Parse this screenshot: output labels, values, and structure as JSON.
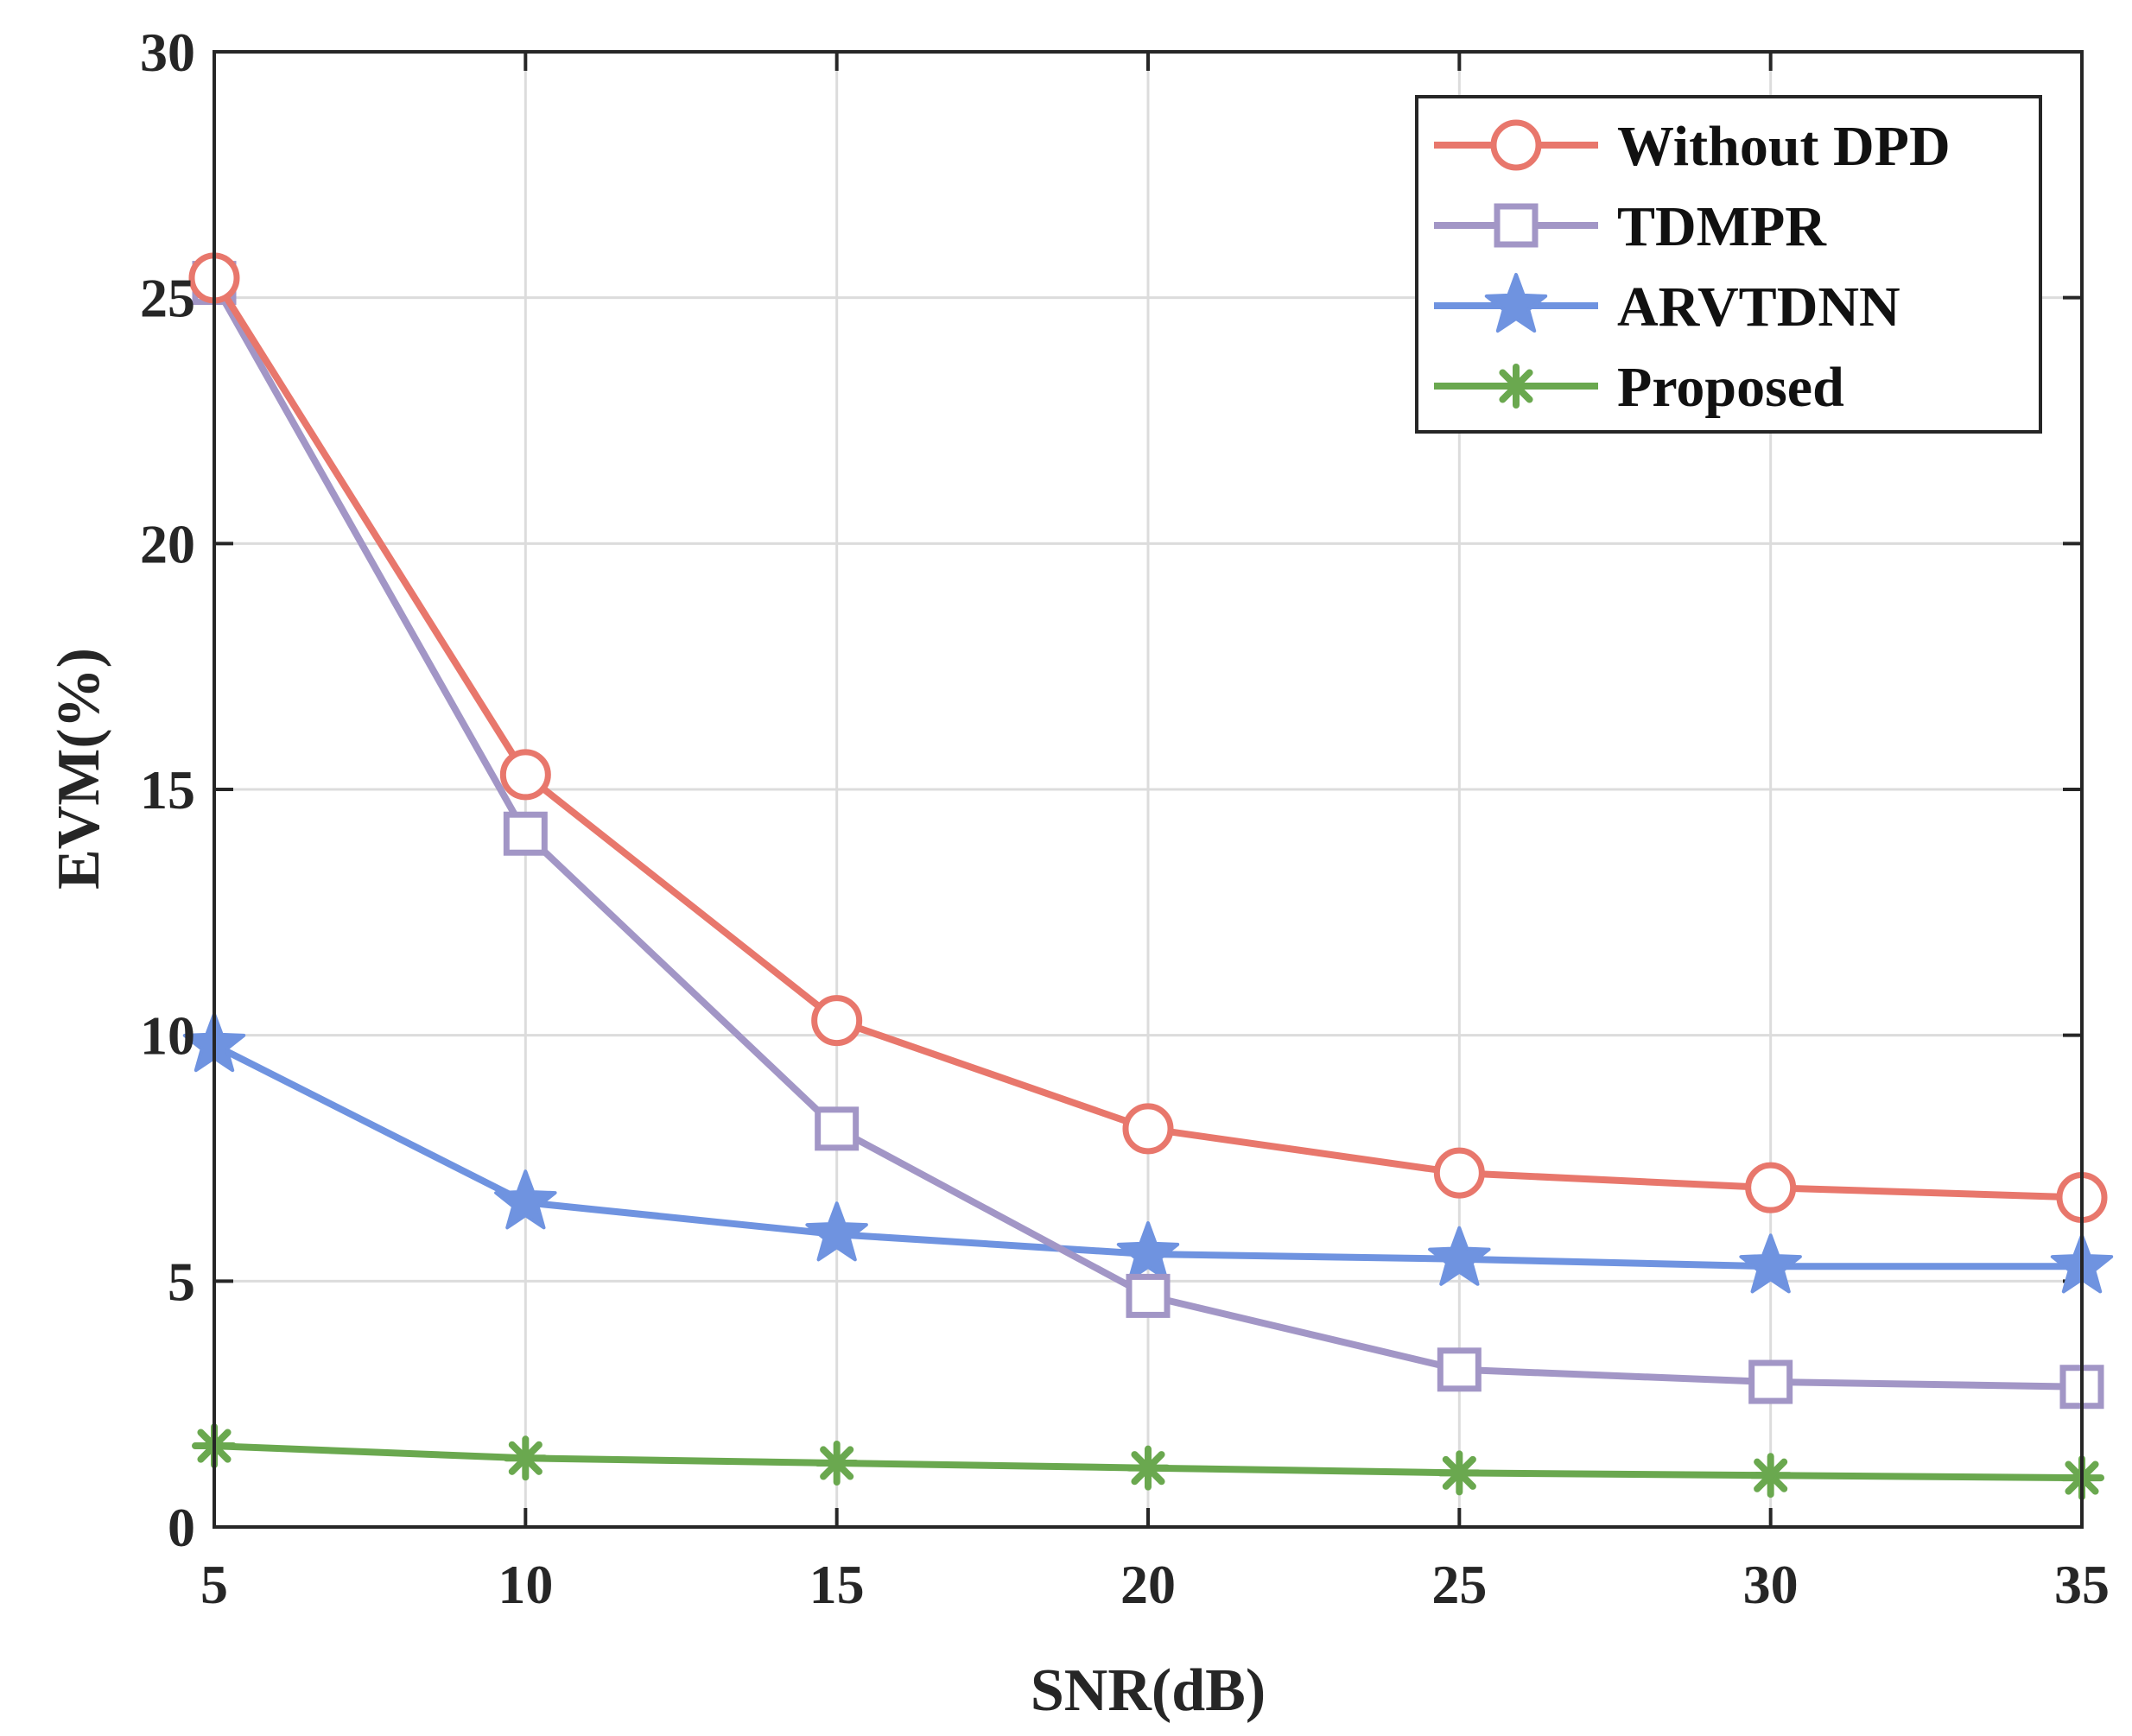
{
  "chart_data": {
    "type": "line",
    "title": "",
    "xlabel": "SNR(dB)",
    "ylabel": "EVM(%)",
    "xlim": [
      5,
      35
    ],
    "ylim": [
      0,
      30
    ],
    "xticks": [
      5,
      10,
      15,
      20,
      25,
      30,
      35
    ],
    "yticks": [
      0,
      5,
      10,
      15,
      20,
      25,
      30
    ],
    "grid": true,
    "legend_position": "top-right",
    "x": [
      5,
      10,
      15,
      20,
      25,
      30,
      35
    ],
    "series": [
      {
        "name": "Without DPD",
        "marker": "circle",
        "color": "#E8776C",
        "values": [
          25.4,
          15.3,
          10.3,
          8.1,
          7.2,
          6.9,
          6.7
        ]
      },
      {
        "name": "TDMPR",
        "marker": "square",
        "color": "#A296C6",
        "values": [
          25.3,
          14.1,
          8.1,
          4.7,
          3.2,
          2.95,
          2.85
        ]
      },
      {
        "name": "ARVTDNN",
        "marker": "star",
        "color": "#6F93E0",
        "values": [
          9.8,
          6.6,
          5.95,
          5.55,
          5.45,
          5.3,
          5.3
        ]
      },
      {
        "name": "Proposed",
        "marker": "asterisk",
        "color": "#6AA84F",
        "values": [
          1.65,
          1.4,
          1.3,
          1.2,
          1.1,
          1.05,
          1.0
        ]
      }
    ]
  }
}
